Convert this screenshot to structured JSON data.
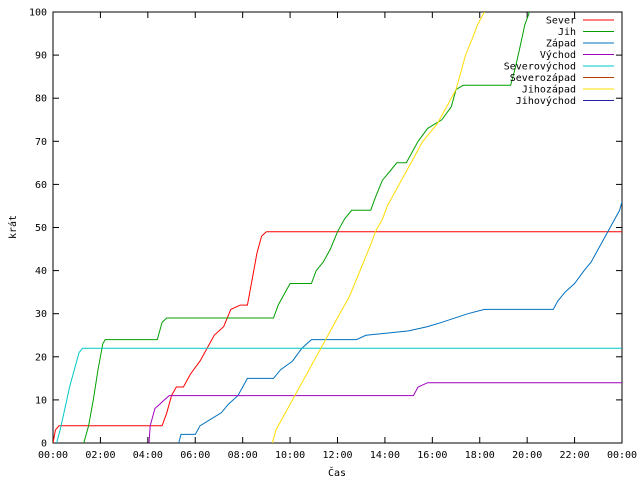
{
  "chart_data": {
    "type": "line",
    "title": "",
    "xlabel": "Čas",
    "ylabel": "krát",
    "xlim": [
      0,
      24
    ],
    "ylim": [
      0,
      100
    ],
    "grid": false,
    "legend_position": "top-right",
    "x_ticks": [
      {
        "value": 0,
        "label": "00:00"
      },
      {
        "value": 2,
        "label": "02:00"
      },
      {
        "value": 4,
        "label": "04:00"
      },
      {
        "value": 6,
        "label": "06:00"
      },
      {
        "value": 8,
        "label": "08:00"
      },
      {
        "value": 10,
        "label": "10:00"
      },
      {
        "value": 12,
        "label": "12:00"
      },
      {
        "value": 14,
        "label": "14:00"
      },
      {
        "value": 16,
        "label": "16:00"
      },
      {
        "value": 18,
        "label": "18:00"
      },
      {
        "value": 20,
        "label": "20:00"
      },
      {
        "value": 22,
        "label": "22:00"
      },
      {
        "value": 24,
        "label": "00:00"
      }
    ],
    "y_ticks": [
      {
        "value": 0,
        "label": "0"
      },
      {
        "value": 10,
        "label": "10"
      },
      {
        "value": 20,
        "label": "20"
      },
      {
        "value": 30,
        "label": "30"
      },
      {
        "value": 40,
        "label": "40"
      },
      {
        "value": 50,
        "label": "50"
      },
      {
        "value": 60,
        "label": "60"
      },
      {
        "value": 70,
        "label": "70"
      },
      {
        "value": 80,
        "label": "80"
      },
      {
        "value": 90,
        "label": "90"
      },
      {
        "value": 100,
        "label": "100"
      }
    ],
    "series": [
      {
        "name": "Sever",
        "color": "#ff0000",
        "points": [
          [
            0,
            0
          ],
          [
            0.1,
            3
          ],
          [
            0.25,
            4
          ],
          [
            4.6,
            4
          ],
          [
            4.8,
            7
          ],
          [
            5,
            11
          ],
          [
            5.2,
            13
          ],
          [
            5.5,
            13
          ],
          [
            5.8,
            16
          ],
          [
            6.2,
            19
          ],
          [
            6.5,
            22
          ],
          [
            6.8,
            25
          ],
          [
            7.2,
            27
          ],
          [
            7.5,
            31
          ],
          [
            7.9,
            32
          ],
          [
            8.2,
            32
          ],
          [
            8.4,
            38
          ],
          [
            8.6,
            44
          ],
          [
            8.8,
            48
          ],
          [
            9,
            49
          ],
          [
            24,
            49
          ]
        ]
      },
      {
        "name": "Jih",
        "color": "#00a000",
        "points": [
          [
            1.3,
            0
          ],
          [
            1.5,
            4
          ],
          [
            1.7,
            10
          ],
          [
            1.9,
            17
          ],
          [
            2.1,
            23
          ],
          [
            2.2,
            24
          ],
          [
            4.4,
            24
          ],
          [
            4.6,
            28
          ],
          [
            4.8,
            29
          ],
          [
            9.3,
            29
          ],
          [
            9.5,
            32
          ],
          [
            9.8,
            35
          ],
          [
            10,
            37
          ],
          [
            10.9,
            37
          ],
          [
            11.1,
            40
          ],
          [
            11.4,
            42
          ],
          [
            11.7,
            45
          ],
          [
            12,
            49
          ],
          [
            12.3,
            52
          ],
          [
            12.6,
            54
          ],
          [
            13.4,
            54
          ],
          [
            13.6,
            57
          ],
          [
            13.9,
            61
          ],
          [
            14.2,
            63
          ],
          [
            14.5,
            65
          ],
          [
            14.9,
            65
          ],
          [
            15.1,
            67
          ],
          [
            15.4,
            70
          ],
          [
            15.8,
            73
          ],
          [
            16.1,
            74
          ],
          [
            16.4,
            75
          ],
          [
            16.8,
            78
          ],
          [
            17,
            82
          ],
          [
            17.3,
            83
          ],
          [
            19.3,
            83
          ],
          [
            19.5,
            87
          ],
          [
            19.7,
            92
          ],
          [
            19.9,
            97
          ],
          [
            20.1,
            100
          ]
        ]
      },
      {
        "name": "Západ",
        "color": "#0070c0",
        "points": [
          [
            5.3,
            0
          ],
          [
            5.4,
            2
          ],
          [
            6,
            2
          ],
          [
            6.2,
            4
          ],
          [
            6.8,
            6
          ],
          [
            7.1,
            7
          ],
          [
            7.4,
            9
          ],
          [
            7.8,
            11
          ],
          [
            8,
            13
          ],
          [
            8.2,
            15
          ],
          [
            9.3,
            15
          ],
          [
            9.6,
            17
          ],
          [
            10.1,
            19
          ],
          [
            10.5,
            22
          ],
          [
            10.9,
            24
          ],
          [
            12.8,
            24
          ],
          [
            13.2,
            25
          ],
          [
            15,
            26
          ],
          [
            15.8,
            27
          ],
          [
            16.4,
            28
          ],
          [
            17.5,
            30
          ],
          [
            18.2,
            31
          ],
          [
            21.1,
            31
          ],
          [
            21.3,
            33
          ],
          [
            21.6,
            35
          ],
          [
            22,
            37
          ],
          [
            22.4,
            40
          ],
          [
            22.7,
            42
          ],
          [
            23,
            45
          ],
          [
            23.3,
            48
          ],
          [
            23.6,
            51
          ],
          [
            23.9,
            54
          ],
          [
            24,
            56
          ]
        ]
      },
      {
        "name": "Východ",
        "color": "#a000c0",
        "points": [
          [
            4.05,
            0
          ],
          [
            4.1,
            4
          ],
          [
            4.3,
            8
          ],
          [
            4.5,
            9
          ],
          [
            4.7,
            10
          ],
          [
            4.9,
            11
          ],
          [
            15.2,
            11
          ],
          [
            15.4,
            13
          ],
          [
            15.8,
            14
          ],
          [
            24,
            14
          ]
        ]
      },
      {
        "name": "Severovýchod",
        "color": "#00c8c8",
        "points": [
          [
            0.15,
            0
          ],
          [
            0.3,
            3
          ],
          [
            0.5,
            8
          ],
          [
            0.7,
            13
          ],
          [
            0.9,
            17
          ],
          [
            1.1,
            21
          ],
          [
            1.25,
            22
          ],
          [
            24,
            22
          ]
        ]
      },
      {
        "name": "Severozápad",
        "color": "#b44000",
        "points": []
      },
      {
        "name": "Jihozápad",
        "color": "#ffdc00",
        "points": [
          [
            9.25,
            0
          ],
          [
            9.4,
            3
          ],
          [
            9.7,
            6
          ],
          [
            10,
            9
          ],
          [
            10.3,
            12
          ],
          [
            10.6,
            15
          ],
          [
            11,
            19
          ],
          [
            11.3,
            22
          ],
          [
            11.6,
            25
          ],
          [
            11.9,
            28
          ],
          [
            12.2,
            31
          ],
          [
            12.5,
            34
          ],
          [
            12.8,
            38
          ],
          [
            13.1,
            42
          ],
          [
            13.4,
            46
          ],
          [
            13.6,
            49
          ],
          [
            13.9,
            52
          ],
          [
            14.1,
            55
          ],
          [
            14.4,
            58
          ],
          [
            14.7,
            61
          ],
          [
            15,
            64
          ],
          [
            15.3,
            67
          ],
          [
            15.6,
            70
          ],
          [
            15.9,
            72
          ],
          [
            16.2,
            74
          ],
          [
            16.5,
            77
          ],
          [
            16.8,
            80
          ],
          [
            17,
            82
          ],
          [
            17.2,
            86
          ],
          [
            17.4,
            90
          ],
          [
            17.7,
            94
          ],
          [
            17.9,
            97
          ],
          [
            18.2,
            100
          ]
        ]
      },
      {
        "name": "Jihovýchod",
        "color": "#2020a0",
        "points": []
      }
    ]
  }
}
